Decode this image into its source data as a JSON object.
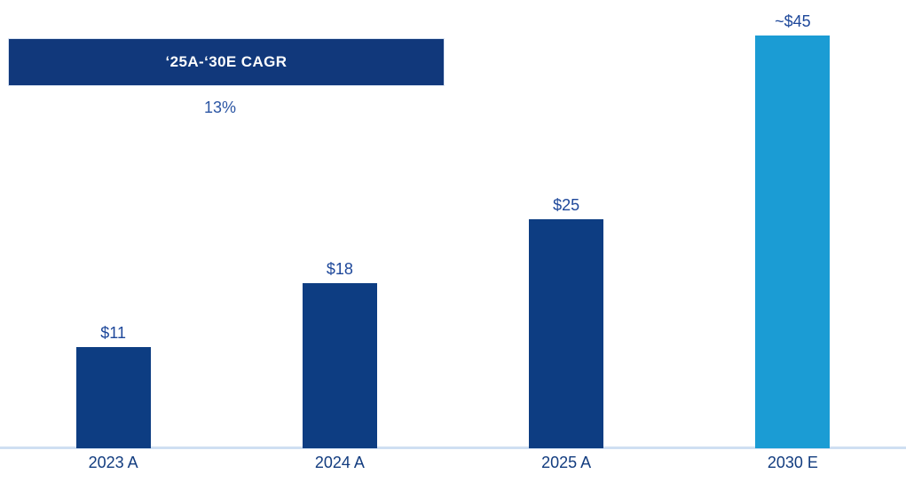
{
  "header": {
    "cagr_label": "‘25A-‘30E CAGR",
    "cagr_value": "13%"
  },
  "chart_data": {
    "type": "bar",
    "categories": [
      "2023 A",
      "2024 A",
      "2025 A",
      "2030 E"
    ],
    "values": [
      11,
      18,
      25,
      45
    ],
    "value_labels": [
      "$11",
      "$18",
      "$25",
      "~$45"
    ],
    "bar_colors": [
      "#0d3d82",
      "#0d3d82",
      "#0d3d82",
      "#1b9cd4"
    ],
    "ylim": [
      0,
      48
    ],
    "grid": "off",
    "legend": "none",
    "annotations": [
      "‘25A-‘30E CAGR",
      "13%"
    ]
  },
  "colors": {
    "bar_dark_blue": "#0d3d82",
    "bar_light_blue": "#1b9cd4",
    "header_box_bg": "#11387b",
    "header_text": "#ffffff",
    "cagr_value_text": "#2b55a3",
    "value_label_text": "#1d479a",
    "axis_label_text": "#123c7f",
    "axis_line": "#cfdff2",
    "background": "#ffffff"
  }
}
